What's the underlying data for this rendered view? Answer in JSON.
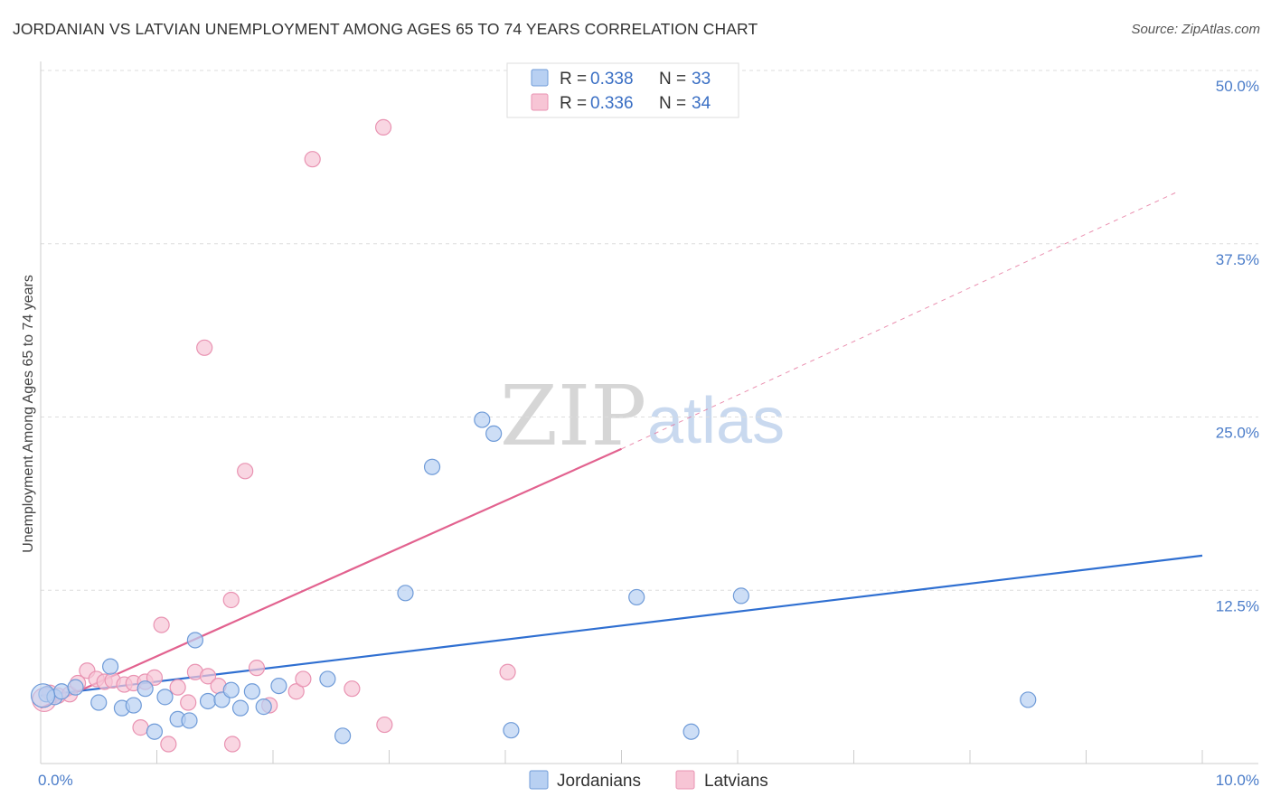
{
  "title": "JORDANIAN VS LATVIAN UNEMPLOYMENT AMONG AGES 65 TO 74 YEARS CORRELATION CHART",
  "source": "Source: ZipAtlas.com",
  "colors": {
    "jordanians_fill": "#b8d0f2",
    "jordanians_stroke": "#6f9bd8",
    "jordanians_line": "#2f6fd1",
    "latvians_fill": "#f7c5d5",
    "latvians_stroke": "#e993b2",
    "latvians_line": "#e2628f",
    "grid": "#dddddd",
    "tick_text": "#4a7cc9"
  },
  "watermark": {
    "part1": "ZIP",
    "part2": "atlas"
  },
  "legend": {
    "rows": [
      {
        "r_label": "R =",
        "r_value": "0.338",
        "n_label": "N =",
        "n_value": "33"
      },
      {
        "r_label": "R =",
        "r_value": "0.336",
        "n_label": "N =",
        "n_value": "34"
      }
    ]
  },
  "bottom_legend": [
    "Jordanians",
    "Latvians"
  ],
  "chart_data": {
    "type": "scatter",
    "title": "JORDANIAN VS LATVIAN UNEMPLOYMENT AMONG AGES 65 TO 74 YEARS CORRELATION CHART",
    "xlabel": "",
    "ylabel": "Unemployment Among Ages 65 to 74 years",
    "xlim": [
      0,
      10
    ],
    "ylim": [
      0,
      50
    ],
    "x_tick_labels": [
      "0.0%",
      "10.0%"
    ],
    "x_tick_values": [
      0,
      10
    ],
    "y_tick_labels": [
      "12.5%",
      "25.0%",
      "37.5%",
      "50.0%"
    ],
    "y_tick_values": [
      12.5,
      25,
      37.5,
      50
    ],
    "series": [
      {
        "name": "Jordanians",
        "r": 0.338,
        "n": 33,
        "points": [
          [
            0.05,
            5.0
          ],
          [
            0.12,
            4.8
          ],
          [
            0.18,
            5.2
          ],
          [
            0.3,
            5.5
          ],
          [
            0.5,
            4.4
          ],
          [
            0.6,
            7.0
          ],
          [
            0.7,
            4.0
          ],
          [
            0.8,
            4.2
          ],
          [
            0.9,
            5.4
          ],
          [
            0.98,
            2.3
          ],
          [
            1.07,
            4.8
          ],
          [
            1.18,
            3.2
          ],
          [
            1.28,
            3.1
          ],
          [
            1.33,
            8.9
          ],
          [
            1.44,
            4.5
          ],
          [
            1.56,
            4.6
          ],
          [
            1.64,
            5.3
          ],
          [
            1.72,
            4.0
          ],
          [
            1.82,
            5.2
          ],
          [
            1.92,
            4.1
          ],
          [
            2.05,
            5.6
          ],
          [
            2.47,
            6.1
          ],
          [
            2.6,
            2.0
          ],
          [
            3.14,
            12.3
          ],
          [
            3.37,
            21.4
          ],
          [
            3.8,
            24.8
          ],
          [
            3.9,
            23.8
          ],
          [
            4.05,
            2.4
          ],
          [
            5.13,
            12.0
          ],
          [
            5.6,
            2.3
          ],
          [
            6.03,
            12.1
          ],
          [
            8.5,
            4.6
          ],
          [
            0.02,
            4.9
          ]
        ],
        "trend": {
          "x0": 0,
          "y0": 4.9,
          "x1": 10,
          "y1": 15.0
        }
      },
      {
        "name": "Latvians",
        "r": 0.336,
        "n": 34,
        "points": [
          [
            0.08,
            5.1
          ],
          [
            0.15,
            4.9
          ],
          [
            0.25,
            5.0
          ],
          [
            0.32,
            5.8
          ],
          [
            0.4,
            6.7
          ],
          [
            0.48,
            6.1
          ],
          [
            0.55,
            5.9
          ],
          [
            0.62,
            6.0
          ],
          [
            0.72,
            5.7
          ],
          [
            0.8,
            5.8
          ],
          [
            0.86,
            2.6
          ],
          [
            0.9,
            5.9
          ],
          [
            0.98,
            6.2
          ],
          [
            1.04,
            10.0
          ],
          [
            1.1,
            1.4
          ],
          [
            1.18,
            5.5
          ],
          [
            1.27,
            4.4
          ],
          [
            1.33,
            6.6
          ],
          [
            1.41,
            30.0
          ],
          [
            1.44,
            6.3
          ],
          [
            1.53,
            5.6
          ],
          [
            1.64,
            11.8
          ],
          [
            1.65,
            1.4
          ],
          [
            1.76,
            21.1
          ],
          [
            1.86,
            6.9
          ],
          [
            1.97,
            4.2
          ],
          [
            2.2,
            5.2
          ],
          [
            2.26,
            6.1
          ],
          [
            2.34,
            43.6
          ],
          [
            2.68,
            5.4
          ],
          [
            2.95,
            45.9
          ],
          [
            2.96,
            2.8
          ],
          [
            4.02,
            6.6
          ],
          [
            0.03,
            4.6
          ]
        ],
        "trend": {
          "x0": 0,
          "y0": 4.0,
          "x1": 5.0,
          "y1": 22.7,
          "dash_to_x": 9.8,
          "dash_to_y": 41.3
        }
      }
    ]
  }
}
